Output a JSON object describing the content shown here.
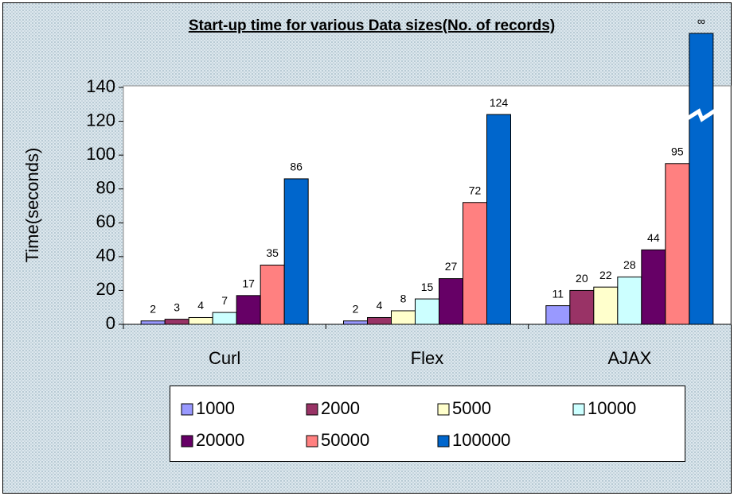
{
  "chart_data": {
    "type": "bar",
    "title": "Start-up time for various Data sizes(No. of records)",
    "y_label": "Time(seconds)",
    "categories": [
      "Curl",
      "Flex",
      "AJAX"
    ],
    "ylim": [
      0,
      140
    ],
    "yticks": [
      0,
      20,
      40,
      60,
      80,
      100,
      120,
      140
    ],
    "legend": "bottom",
    "series": [
      {
        "name": "1000",
        "color": "#9999ff",
        "values": [
          2,
          2,
          11
        ]
      },
      {
        "name": "2000",
        "color": "#993366",
        "values": [
          3,
          4,
          20
        ]
      },
      {
        "name": "5000",
        "color": "#ffffcc",
        "values": [
          4,
          8,
          22
        ]
      },
      {
        "name": "10000",
        "color": "#ccffff",
        "values": [
          7,
          15,
          28
        ]
      },
      {
        "name": "20000",
        "color": "#660066",
        "values": [
          17,
          27,
          44
        ]
      },
      {
        "name": "50000",
        "color": "#ff8080",
        "values": [
          35,
          72,
          95
        ]
      },
      {
        "name": "100000",
        "color": "#0066cc",
        "values": [
          86,
          124,
          null
        ],
        "value_labels": [
          "86",
          "124",
          "∞"
        ]
      }
    ]
  }
}
